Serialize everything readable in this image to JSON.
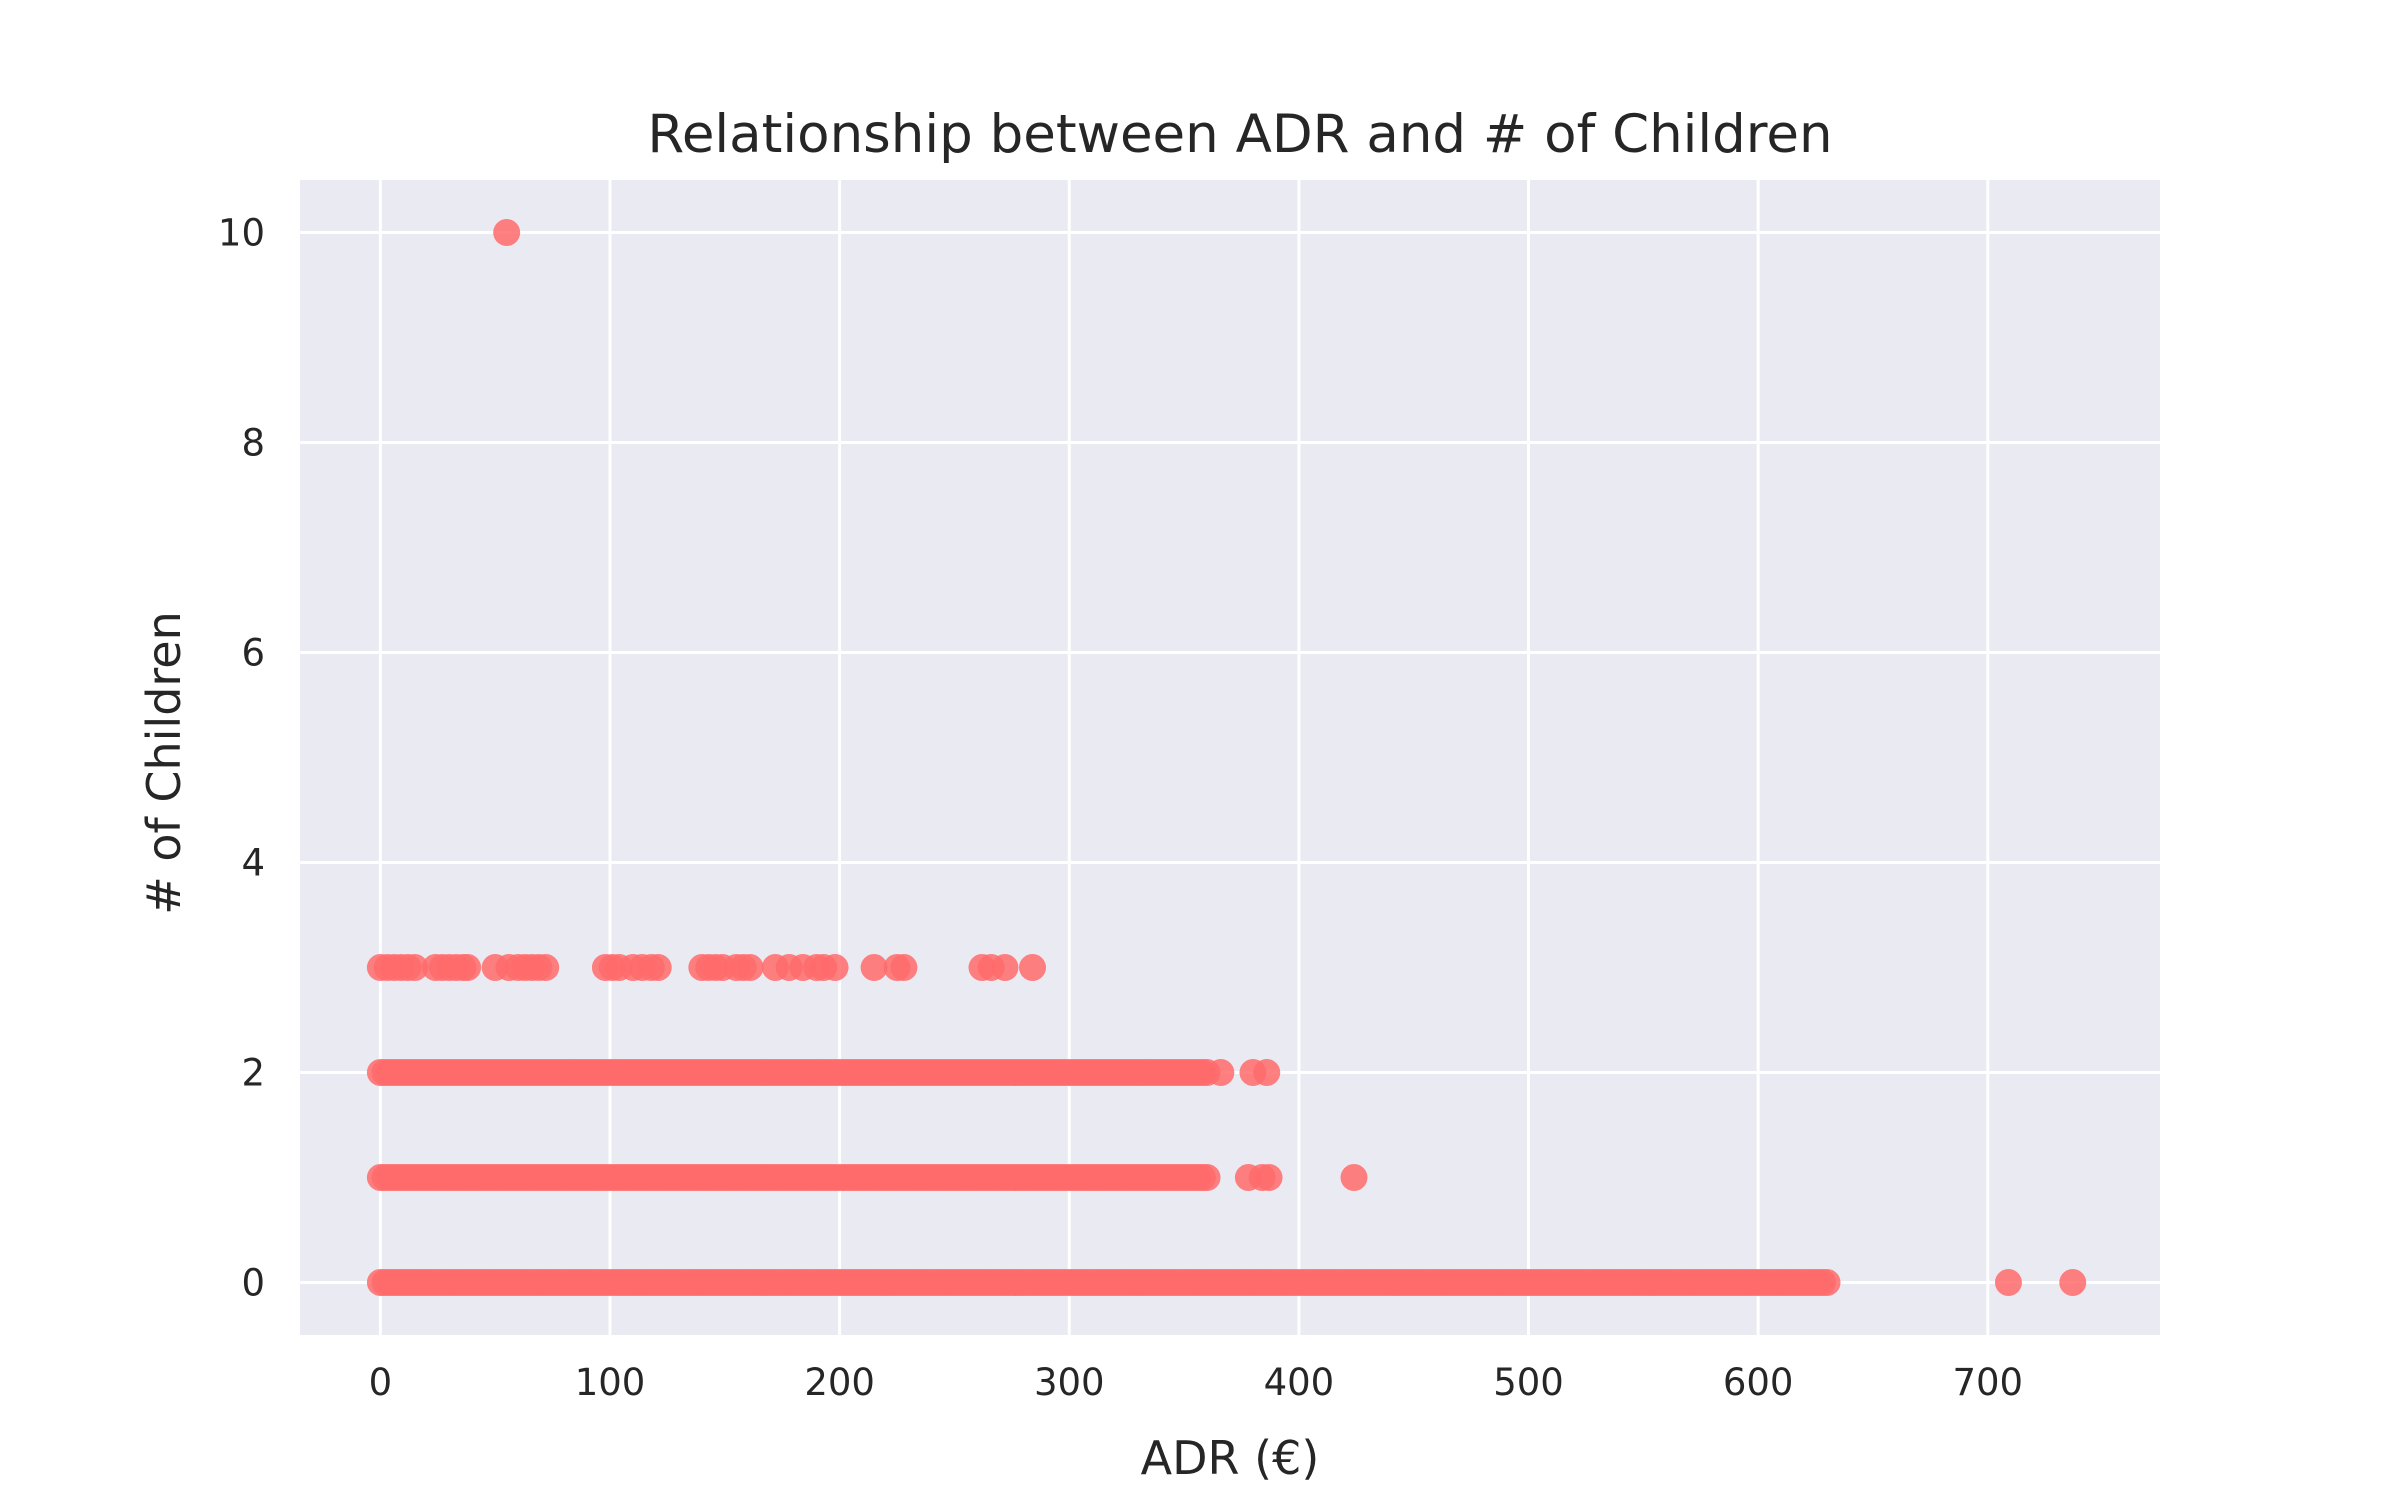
{
  "chart_data": {
    "type": "scatter",
    "title": "Relationship between  ADR and # of Children",
    "xlabel": "ADR (€)",
    "ylabel": "# of Children",
    "xlim": [
      -35,
      775
    ],
    "ylim": [
      -0.5,
      10.5
    ],
    "xticks": [
      0,
      100,
      200,
      300,
      400,
      500,
      600,
      700
    ],
    "yticks": [
      0,
      2,
      4,
      6,
      8,
      10
    ],
    "grid": true,
    "background": "#eaeaf2",
    "grid_color": "#ffffff",
    "point_color": "#ff6b6b",
    "point_alpha": 0.85,
    "series": [
      {
        "points": [
          [
            55,
            10
          ],
          [
            0,
            3
          ],
          [
            3,
            3
          ],
          [
            6,
            3
          ],
          [
            9,
            3
          ],
          [
            12,
            3
          ],
          [
            15,
            3
          ],
          [
            24,
            3
          ],
          [
            27,
            3
          ],
          [
            30,
            3
          ],
          [
            33,
            3
          ],
          [
            36,
            3
          ],
          [
            38,
            3
          ],
          [
            50,
            3
          ],
          [
            56,
            3
          ],
          [
            60,
            3
          ],
          [
            63,
            3
          ],
          [
            66,
            3
          ],
          [
            69,
            3
          ],
          [
            72,
            3
          ],
          [
            98,
            3
          ],
          [
            101,
            3
          ],
          [
            104,
            3
          ],
          [
            110,
            3
          ],
          [
            114,
            3
          ],
          [
            118,
            3
          ],
          [
            121,
            3
          ],
          [
            140,
            3
          ],
          [
            143,
            3
          ],
          [
            146,
            3
          ],
          [
            149,
            3
          ],
          [
            155,
            3
          ],
          [
            158,
            3
          ],
          [
            161,
            3
          ],
          [
            172,
            3
          ],
          [
            178,
            3
          ],
          [
            184,
            3
          ],
          [
            190,
            3
          ],
          [
            193,
            3
          ],
          [
            198,
            3
          ],
          [
            215,
            3
          ],
          [
            225,
            3
          ],
          [
            228,
            3
          ],
          [
            262,
            3
          ],
          [
            266,
            3
          ],
          [
            272,
            3
          ],
          [
            284,
            3
          ],
          [
            366,
            2
          ],
          [
            380,
            2
          ],
          [
            386,
            2
          ],
          [
            378,
            1
          ],
          [
            384,
            1
          ],
          [
            387,
            1
          ],
          [
            424,
            1
          ],
          [
            709,
            0
          ],
          [
            737,
            0
          ]
        ],
        "ranges": [
          {
            "y": 2,
            "from": 0,
            "to": 360
          },
          {
            "y": 1,
            "from": 0,
            "to": 360
          },
          {
            "y": 0,
            "from": 0,
            "to": 630
          }
        ]
      }
    ]
  }
}
